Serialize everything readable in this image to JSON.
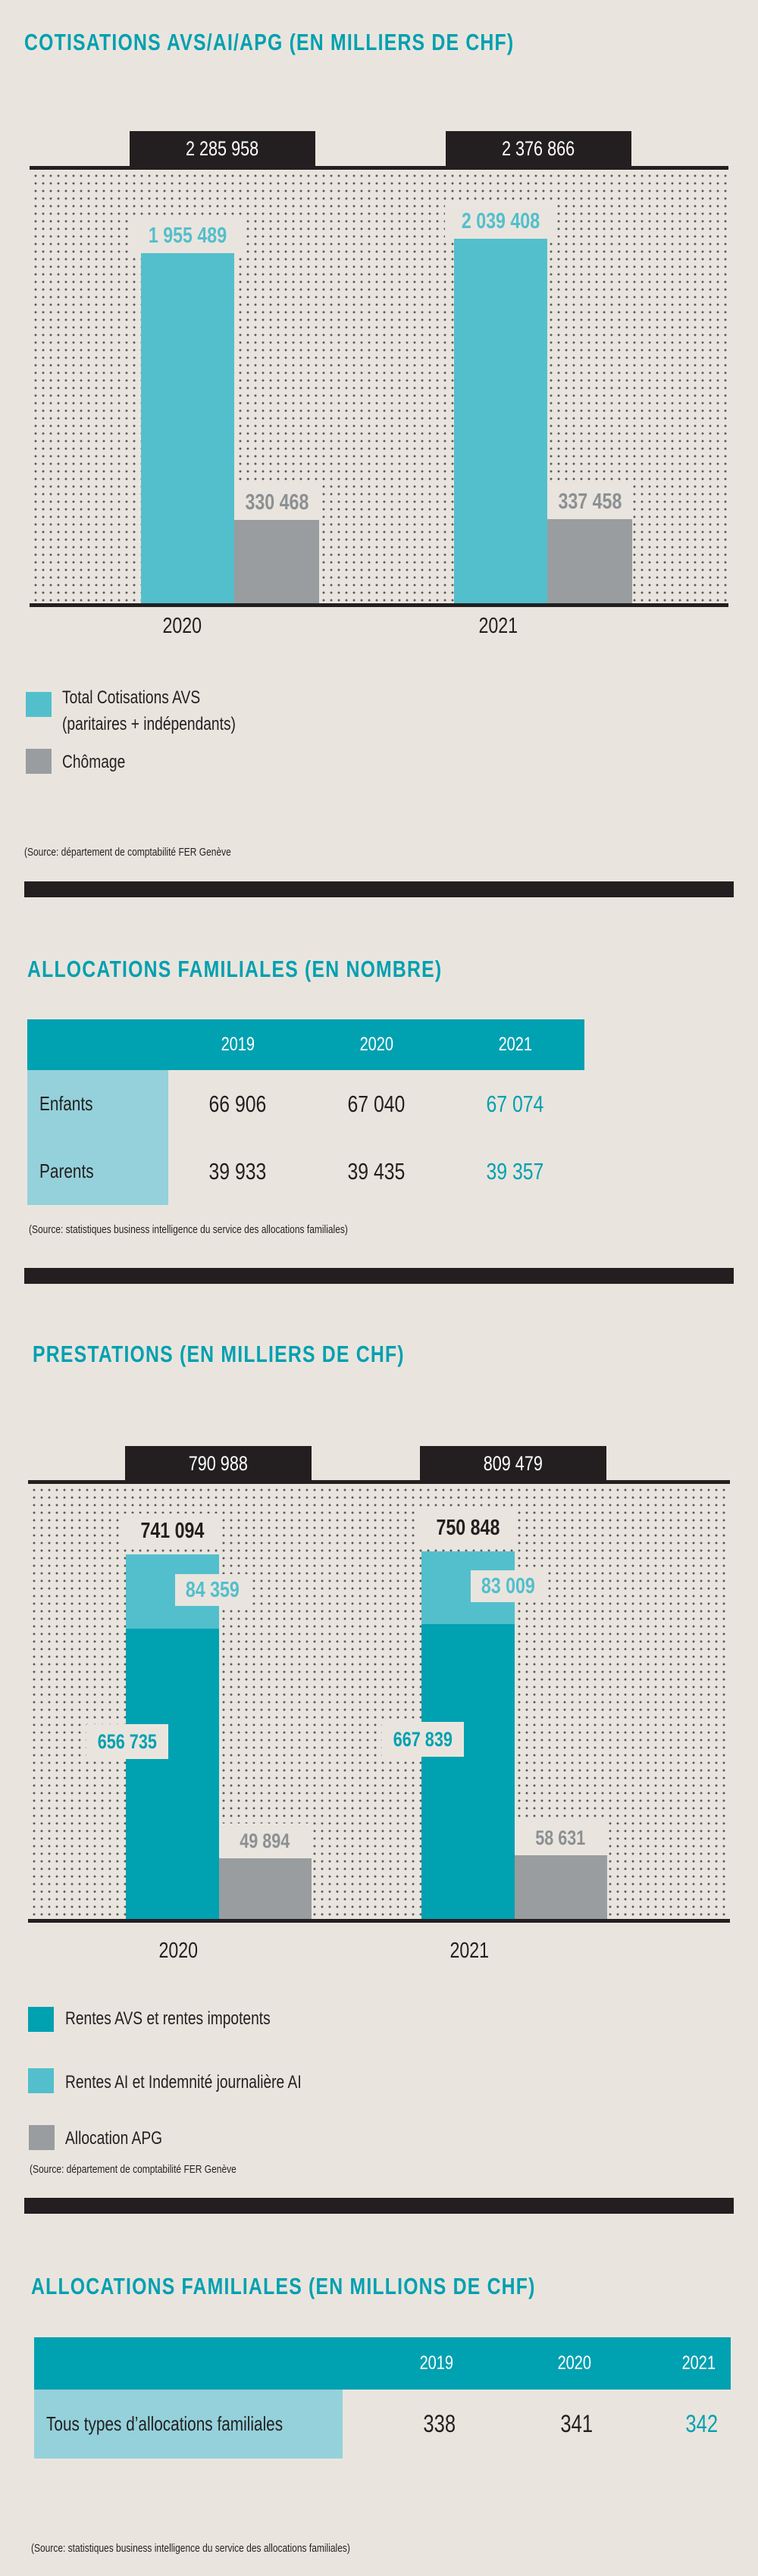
{
  "colors": {
    "cyan": "#53bfcc",
    "teal": "#00a1b1",
    "gray": "#999da0",
    "black": "#231f20",
    "title": "#00a0b0",
    "label_cell": "#95d1db"
  },
  "chart_data": [
    {
      "type": "bar",
      "title": "COTISATIONS AVS/AI/APG (EN MILLIERS DE CHF)",
      "categories": [
        "2020",
        "2021"
      ],
      "totals": [
        "2 285 958",
        "2 376 866"
      ],
      "series": [
        {
          "name": "Total Cotisations AVS (paritaires + indépendants)",
          "values": [
            1955489,
            2039408
          ],
          "labels": [
            "1 955 489",
            "2 039 408"
          ],
          "color": "#53bfcc"
        },
        {
          "name": "Chômage",
          "values": [
            330468,
            337458
          ],
          "labels": [
            "330 468",
            "337 458"
          ],
          "color": "#999da0"
        }
      ],
      "legend": [
        {
          "lines": [
            "Total Cotisations AVS",
            "(paritaires + indépendants)"
          ],
          "color": "#53bfcc"
        },
        {
          "lines": [
            "Chômage"
          ],
          "color": "#999da0"
        }
      ],
      "source": "(Source: département de comptabilité FER Genève"
    },
    {
      "type": "bar",
      "title": "PRESTATIONS (EN MILLIERS DE CHF)",
      "categories": [
        "2020",
        "2021"
      ],
      "totals": [
        "790 988",
        "809 479"
      ],
      "stack_totals": [
        "741 094",
        "750 848"
      ],
      "series": [
        {
          "name": "Rentes AVS et rentes impotents",
          "values": [
            656735,
            667839
          ],
          "labels": [
            "656 735",
            "667 839"
          ],
          "color": "#00a1b1",
          "stack": "a"
        },
        {
          "name": "Rentes AI et Indemnité journalière AI",
          "values": [
            84359,
            83009
          ],
          "labels": [
            "84 359",
            "83 009"
          ],
          "color": "#53bfcc",
          "stack": "a"
        },
        {
          "name": "Allocation APG",
          "values": [
            49894,
            58631
          ],
          "labels": [
            "49 894",
            "58 631"
          ],
          "color": "#999da0"
        }
      ],
      "legend": [
        {
          "lines": [
            "Rentes AVS et rentes impotents"
          ],
          "color": "#00a1b1"
        },
        {
          "lines": [
            "Rentes AI et Indemnité journalière AI"
          ],
          "color": "#53bfcc"
        },
        {
          "lines": [
            "Allocation APG"
          ],
          "color": "#999da0"
        }
      ],
      "source": "(Source: département de comptabilité FER Genève"
    }
  ],
  "table1": {
    "title": "ALLOCATIONS FAMILIALES (EN NOMBRE)",
    "headers": [
      "2019",
      "2020",
      "2021"
    ],
    "rows": [
      {
        "label": "Enfants",
        "values": [
          "66 906",
          "67 040",
          "67 074"
        ]
      },
      {
        "label": "Parents",
        "values": [
          "39 933",
          "39 435",
          "39 357"
        ]
      }
    ],
    "source": "(Source: statistiques business intelligence du service des allocations familiales)"
  },
  "table2": {
    "title": "ALLOCATIONS FAMILIALES (EN MILLIONS DE CHF)",
    "headers": [
      "2019",
      "2020",
      "2021"
    ],
    "rows": [
      {
        "label": "Tous types d’allocations familiales",
        "values": [
          "338",
          "341",
          "342"
        ]
      }
    ],
    "source": "(Source: statistiques business intelligence du service des allocations familiales)"
  }
}
